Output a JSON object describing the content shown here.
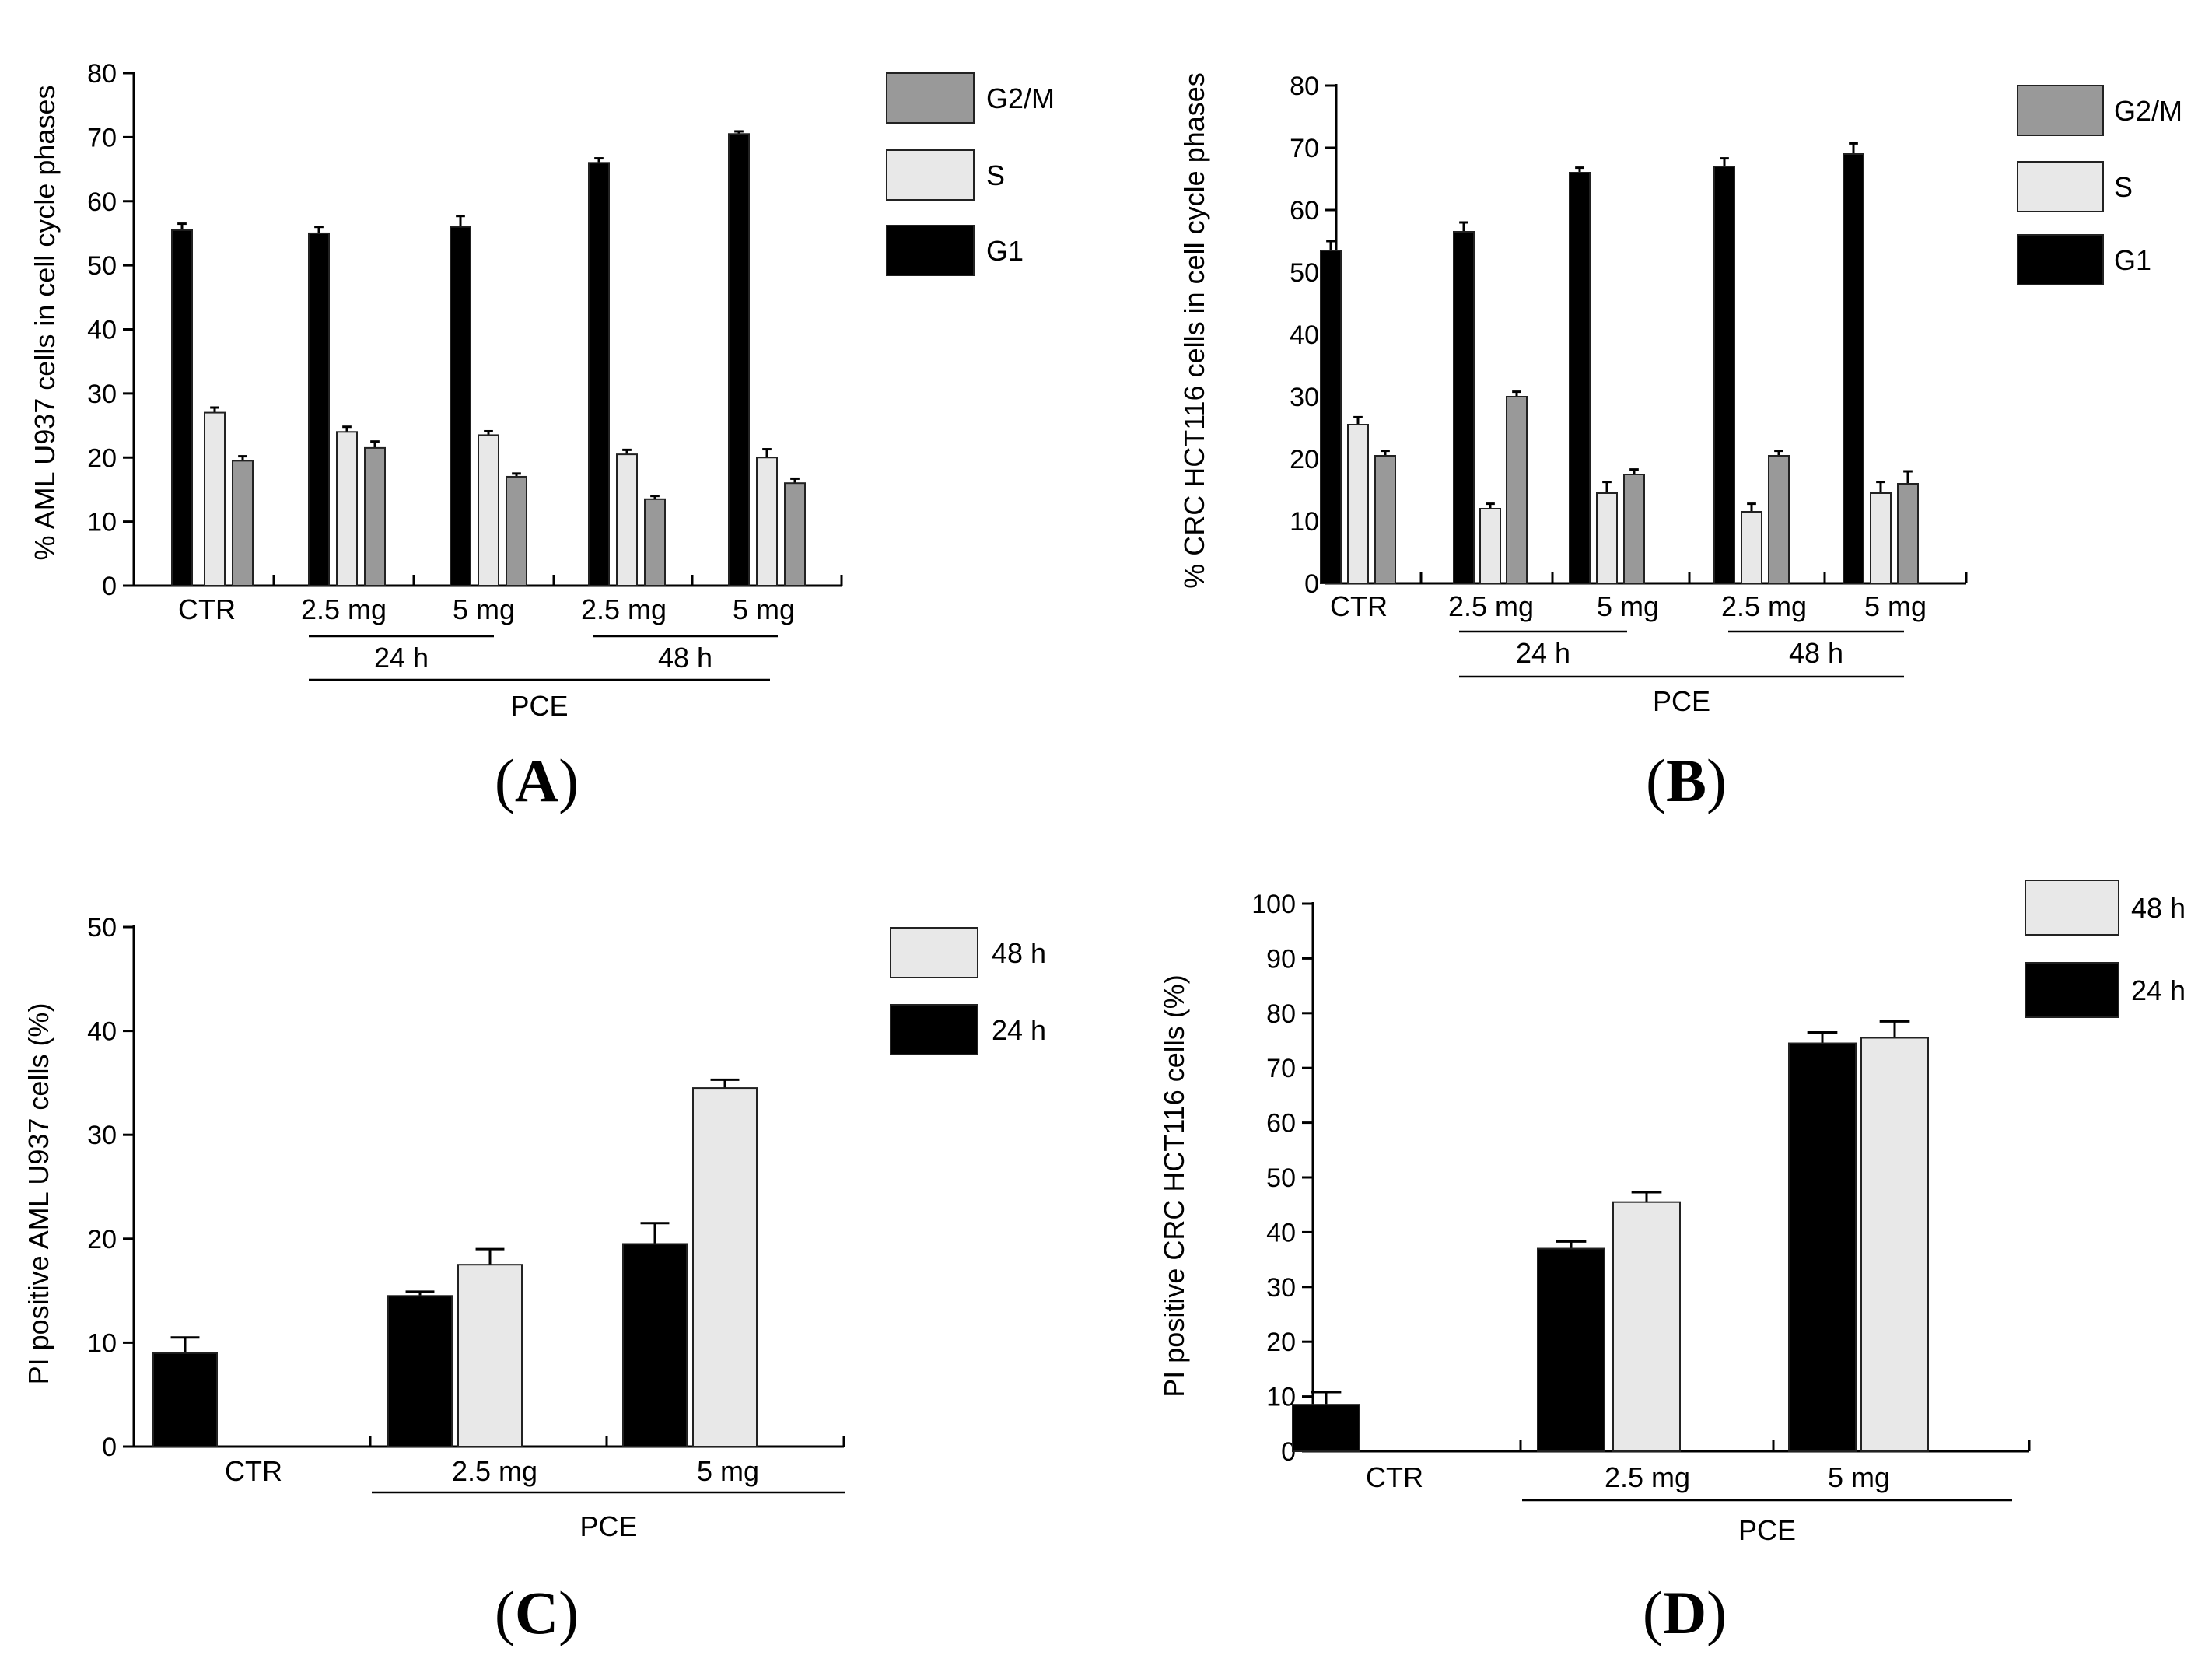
{
  "colors": {
    "G1": "#000000",
    "S": "#e8e8e8",
    "G2M": "#999999",
    "h24": "#000000",
    "h48": "#e8e8e8"
  },
  "chart_data": [
    {
      "panel": "A",
      "panel_label": "(A)",
      "panel_letter": "A",
      "type": "bar",
      "ylabel": "% AML U937  cells in cell cycle phases",
      "ylim": [
        0,
        80
      ],
      "yticks": [
        0,
        10,
        20,
        30,
        40,
        50,
        60,
        70,
        80
      ],
      "categories": [
        "CTR",
        "2.5 mg",
        "5 mg",
        "2.5 mg",
        "5 mg"
      ],
      "series": [
        {
          "name": "G1",
          "color_key": "G1",
          "values": [
            55.5,
            55,
            56,
            66,
            70.5
          ],
          "errors": [
            1.0,
            1.0,
            1.7,
            0.7,
            0.4
          ]
        },
        {
          "name": "S",
          "color_key": "S",
          "values": [
            27,
            24,
            23.5,
            20.5,
            20
          ],
          "errors": [
            0.8,
            0.8,
            0.6,
            0.7,
            1.3
          ]
        },
        {
          "name": "G2/M",
          "color_key": "G2M",
          "values": [
            19.5,
            21.5,
            17,
            13.5,
            16
          ],
          "errors": [
            0.7,
            1.0,
            0.5,
            0.5,
            0.7
          ]
        }
      ],
      "legend": [
        "G2/M",
        "S",
        "G1"
      ],
      "groups": [
        {
          "label": "24 h",
          "from": 1,
          "to": 2
        },
        {
          "label": "48 h",
          "from": 3,
          "to": 4
        }
      ],
      "super_group": {
        "label": "PCE",
        "from": 1,
        "to": 4
      }
    },
    {
      "panel": "B",
      "panel_label": "(B)",
      "panel_letter": "B",
      "type": "bar",
      "ylabel": "% CRC HCT116  cells in cell cycle phases",
      "ylim": [
        0,
        80
      ],
      "yticks": [
        0,
        10,
        20,
        30,
        40,
        50,
        60,
        70,
        80
      ],
      "categories": [
        "CTR",
        "2.5 mg",
        "5 mg",
        "2.5 mg",
        "5 mg"
      ],
      "series": [
        {
          "name": "G1",
          "color_key": "G1",
          "values": [
            53.5,
            56.5,
            66,
            67,
            69
          ],
          "errors": [
            1.5,
            1.5,
            0.8,
            1.3,
            1.7
          ]
        },
        {
          "name": "S",
          "color_key": "S",
          "values": [
            25.5,
            12,
            14.5,
            11.5,
            14.5
          ],
          "errors": [
            1.2,
            0.8,
            1.8,
            1.3,
            1.8
          ]
        },
        {
          "name": "G2/M",
          "color_key": "G2M",
          "values": [
            20.5,
            30,
            17.5,
            20.5,
            16
          ],
          "errors": [
            0.8,
            0.8,
            0.8,
            0.8,
            2.0
          ]
        }
      ],
      "legend": [
        "G2/M",
        "S",
        "G1"
      ],
      "groups": [
        {
          "label": "24 h",
          "from": 1,
          "to": 2
        },
        {
          "label": "48 h",
          "from": 3,
          "to": 4
        }
      ],
      "super_group": {
        "label": "PCE",
        "from": 1,
        "to": 4
      }
    },
    {
      "panel": "C",
      "panel_label": "(C)",
      "panel_letter": "C",
      "type": "bar",
      "ylabel": "PI positive AML U937 cells (%)",
      "ylim": [
        0,
        50
      ],
      "yticks": [
        0,
        10,
        20,
        30,
        40,
        50
      ],
      "categories": [
        "CTR",
        "2.5 mg",
        "5 mg"
      ],
      "series": [
        {
          "name": "24 h",
          "color_key": "h24",
          "values": [
            9,
            14.5,
            19.5
          ],
          "errors": [
            1.5,
            0.4,
            2.0
          ]
        },
        {
          "name": "48 h",
          "color_key": "h48",
          "values": [
            null,
            17.5,
            34.5
          ],
          "errors": [
            null,
            1.5,
            0.8
          ]
        }
      ],
      "legend": [
        "48 h",
        "24 h"
      ],
      "groups": [],
      "super_group": {
        "label": "PCE",
        "from": 1,
        "to": 2
      }
    },
    {
      "panel": "D",
      "panel_label": "(D)",
      "panel_letter": "D",
      "type": "bar",
      "ylabel": "PI positive CRC HCT116 cells (%)",
      "ylim": [
        0,
        100
      ],
      "yticks": [
        0,
        10,
        20,
        30,
        40,
        50,
        60,
        70,
        80,
        90,
        100
      ],
      "categories": [
        "CTR",
        "2.5 mg",
        "5 mg"
      ],
      "series": [
        {
          "name": "24 h",
          "color_key": "h24",
          "values": [
            8.5,
            37,
            74.5
          ],
          "errors": [
            2.3,
            1.3,
            2.0
          ]
        },
        {
          "name": "48 h",
          "color_key": "h48",
          "values": [
            null,
            45.5,
            75.5
          ],
          "errors": [
            null,
            1.8,
            3.0
          ]
        }
      ],
      "legend": [
        "48 h",
        "24 h"
      ],
      "groups": [],
      "super_group": {
        "label": "PCE",
        "from": 1,
        "to": 2
      }
    }
  ]
}
